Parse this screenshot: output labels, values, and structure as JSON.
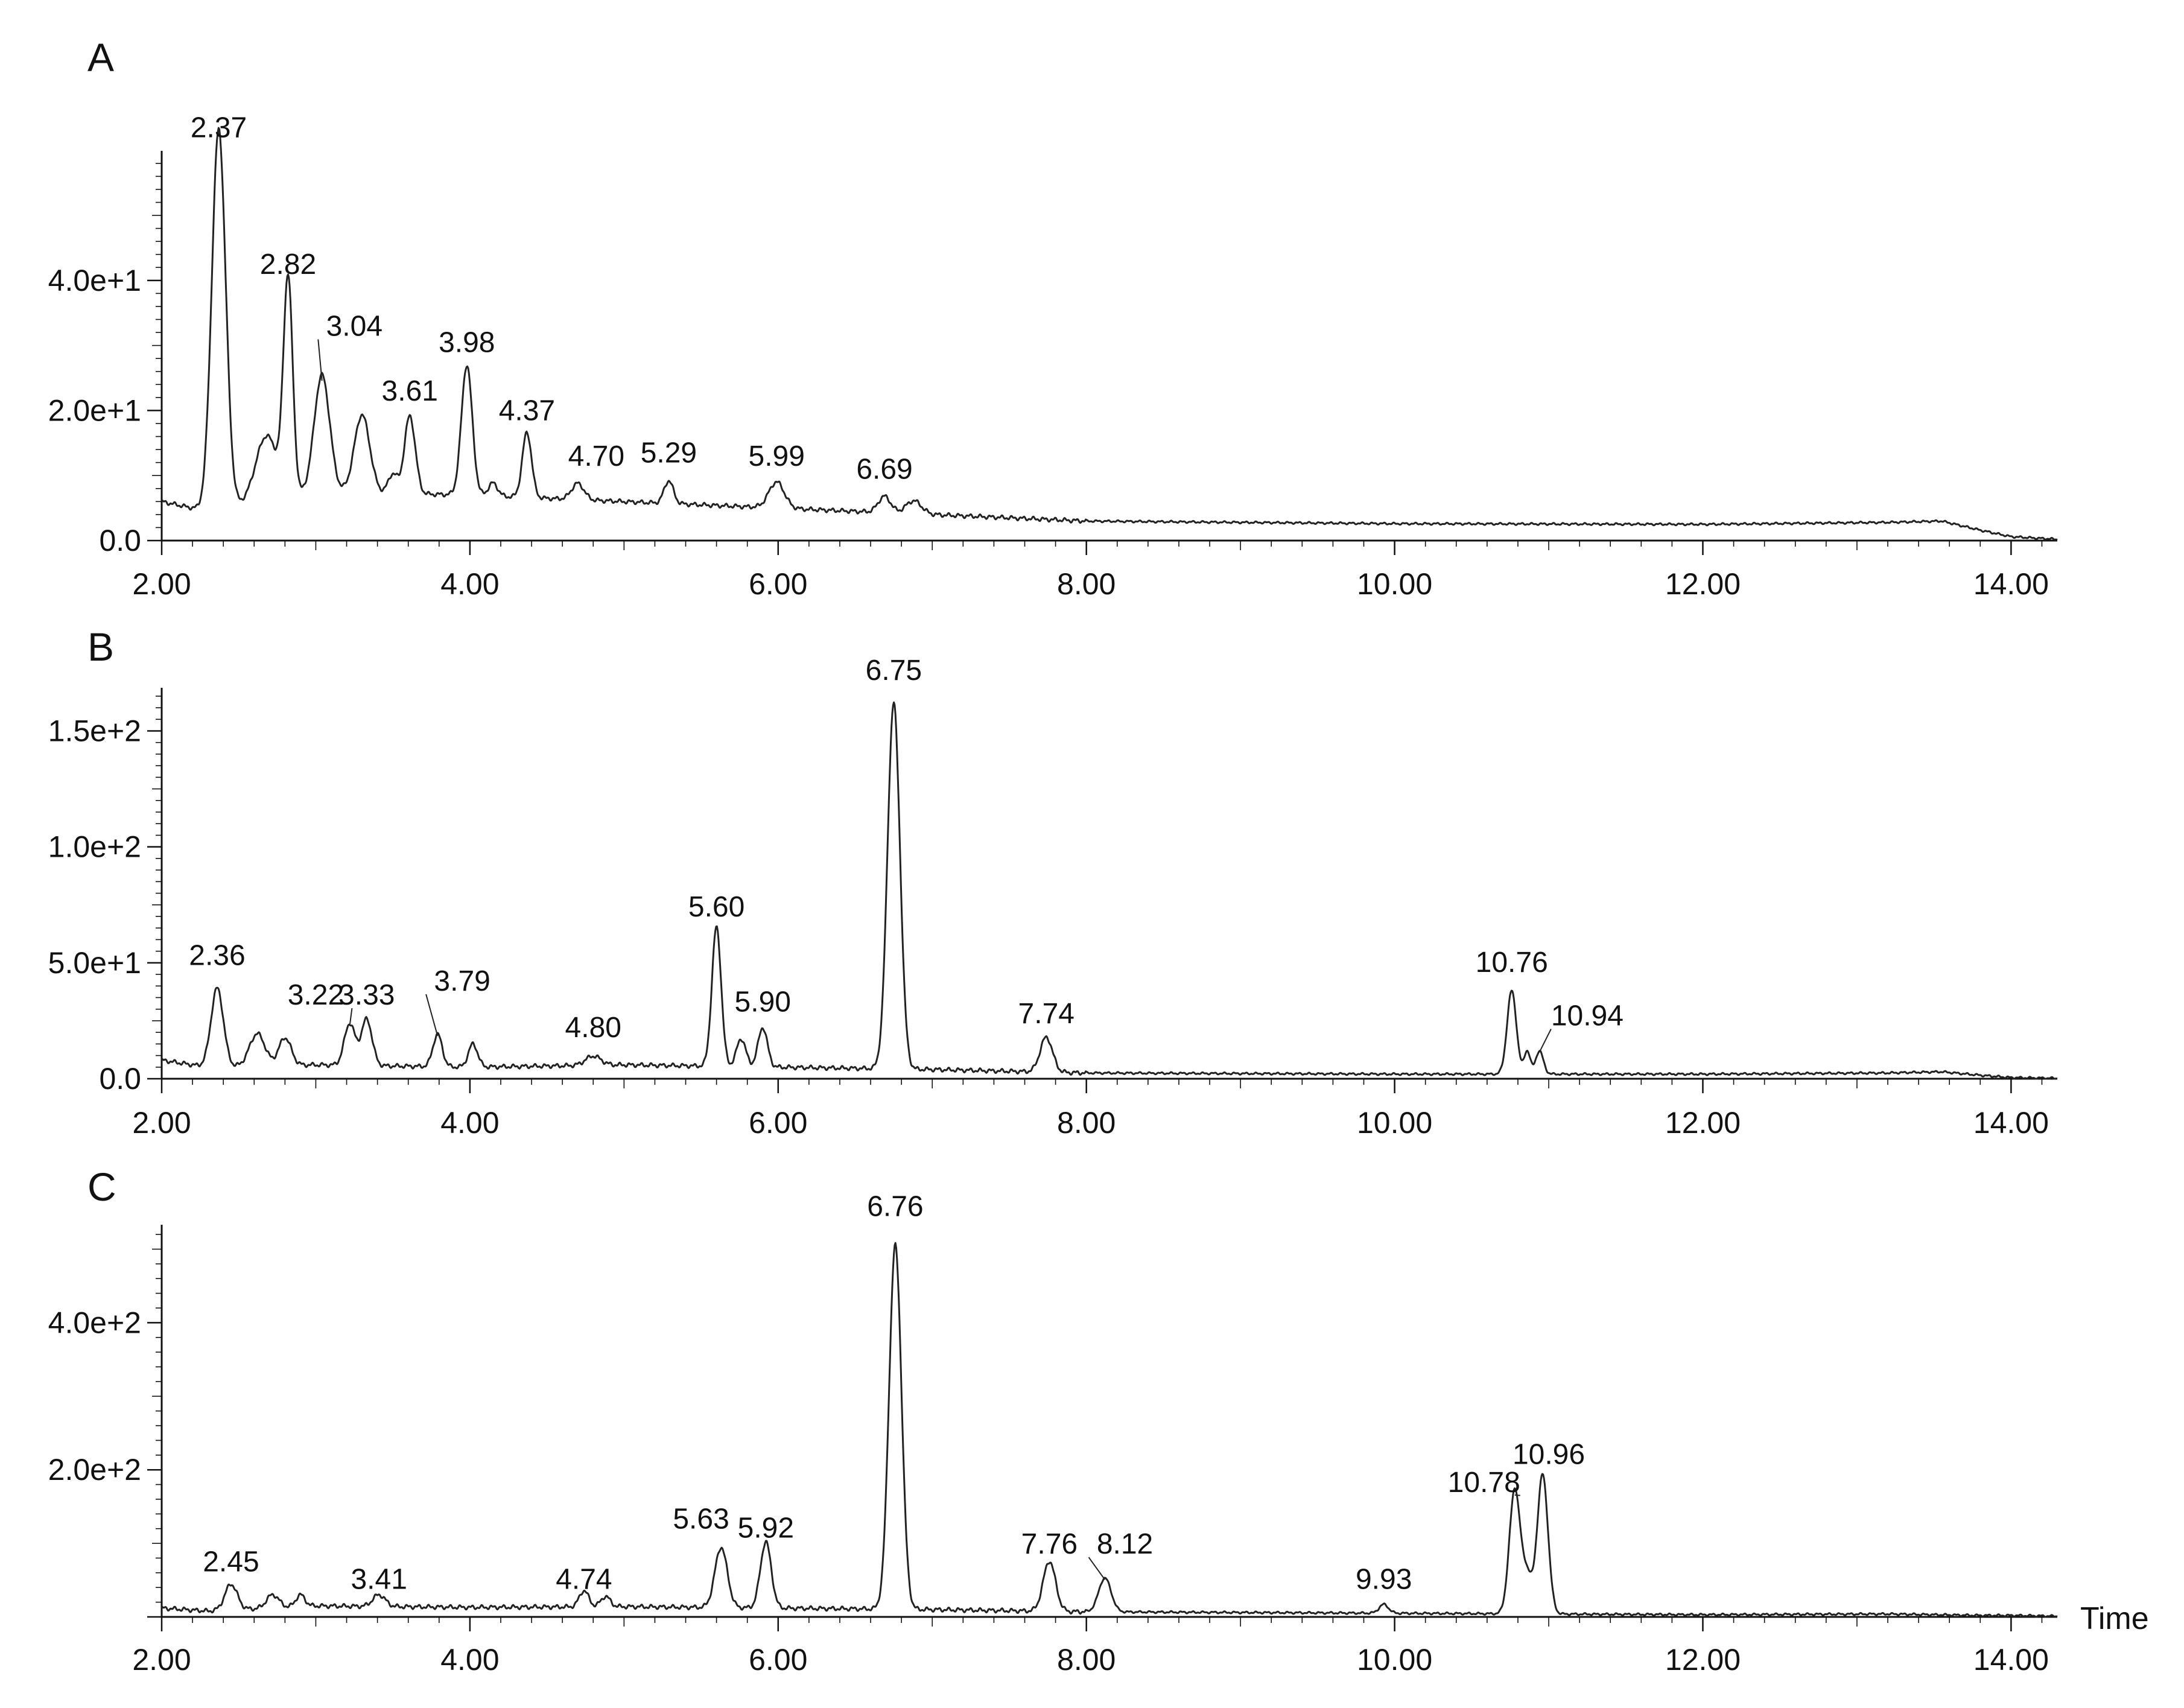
{
  "chart_data": [
    {
      "type": "line",
      "panel_label": "A",
      "x_ticks": [
        "2.00",
        "4.00",
        "6.00",
        "8.00",
        "10.00",
        "12.00",
        "14.00"
      ],
      "y_ticks": [
        {
          "value": 0,
          "label": "0.0"
        },
        {
          "value": 20,
          "label": "2.0e+1"
        },
        {
          "value": 40,
          "label": "4.0e+1"
        }
      ],
      "xlim": [
        2.0,
        14.3
      ],
      "ylim": [
        0,
        59
      ],
      "baseline": [
        [
          2.0,
          6.0
        ],
        [
          2.3,
          4.5
        ],
        [
          3.0,
          7.5
        ],
        [
          4.0,
          7.0
        ],
        [
          5.0,
          6.0
        ],
        [
          6.0,
          5.0
        ],
        [
          7.0,
          4.0
        ],
        [
          8.0,
          3.0
        ],
        [
          10.0,
          2.6
        ],
        [
          12.0,
          2.5
        ],
        [
          13.2,
          2.8
        ],
        [
          13.55,
          3.0
        ],
        [
          13.8,
          1.6
        ],
        [
          14.0,
          0.6
        ],
        [
          14.3,
          0.2
        ]
      ],
      "peaks": [
        {
          "x": 2.37,
          "y": 58.5,
          "w": 0.045,
          "label": "2.37",
          "lx": 2.37,
          "ly": 62
        },
        {
          "x": 2.68,
          "y": 10,
          "w": 0.07
        },
        {
          "x": 2.82,
          "y": 33,
          "w": 0.03,
          "label": "2.82",
          "lx": 2.82,
          "ly": 41
        },
        {
          "x": 3.04,
          "y": 18,
          "w": 0.05,
          "label": "3.04",
          "lx": 3.25,
          "ly": 31.5,
          "leader": true
        },
        {
          "x": 3.3,
          "y": 12,
          "w": 0.05
        },
        {
          "x": 3.5,
          "y": 3,
          "w": 0.03
        },
        {
          "x": 3.61,
          "y": 12,
          "w": 0.035,
          "label": "3.61",
          "lx": 3.61,
          "ly": 21.5
        },
        {
          "x": 3.98,
          "y": 20,
          "w": 0.035,
          "label": "3.98",
          "lx": 3.98,
          "ly": 29
        },
        {
          "x": 4.15,
          "y": 2,
          "w": 0.03
        },
        {
          "x": 4.37,
          "y": 10,
          "w": 0.03,
          "label": "4.37",
          "lx": 4.37,
          "ly": 18.5
        },
        {
          "x": 4.7,
          "y": 2.5,
          "w": 0.04,
          "label": "4.70",
          "lx": 4.82,
          "ly": 11.5
        },
        {
          "x": 5.29,
          "y": 3.5,
          "w": 0.03,
          "label": "5.29",
          "lx": 5.29,
          "ly": 12
        },
        {
          "x": 5.99,
          "y": 4,
          "w": 0.05,
          "label": "5.99",
          "lx": 5.99,
          "ly": 11.5
        },
        {
          "x": 6.69,
          "y": 2.5,
          "w": 0.04,
          "label": "6.69",
          "lx": 6.69,
          "ly": 9.5
        },
        {
          "x": 6.88,
          "y": 2,
          "w": 0.05
        }
      ]
    },
    {
      "type": "line",
      "panel_label": "B",
      "x_ticks": [
        "2.00",
        "4.00",
        "6.00",
        "8.00",
        "10.00",
        "12.00",
        "14.00"
      ],
      "y_ticks": [
        {
          "value": 0,
          "label": "0.0"
        },
        {
          "value": 50,
          "label": "5.0e+1"
        },
        {
          "value": 100,
          "label": "1.0e+2"
        },
        {
          "value": 150,
          "label": "1.5e+2"
        }
      ],
      "xlim": [
        2.0,
        14.3
      ],
      "ylim": [
        0,
        166
      ],
      "baseline": [
        [
          2.0,
          8.0
        ],
        [
          2.3,
          5.0
        ],
        [
          3.0,
          6.0
        ],
        [
          4.0,
          5.0
        ],
        [
          5.0,
          6.0
        ],
        [
          6.0,
          5.0
        ],
        [
          7.0,
          4.0
        ],
        [
          8.0,
          2.5
        ],
        [
          10.0,
          2.0
        ],
        [
          12.0,
          2.0
        ],
        [
          13.2,
          2.5
        ],
        [
          13.55,
          3.0
        ],
        [
          13.8,
          1.5
        ],
        [
          14.0,
          0.5
        ],
        [
          14.3,
          0.2
        ]
      ],
      "peaks": [
        {
          "x": 2.36,
          "y": 34,
          "w": 0.04,
          "label": "2.36",
          "lx": 2.36,
          "ly": 49
        },
        {
          "x": 2.62,
          "y": 14,
          "w": 0.05
        },
        {
          "x": 2.8,
          "y": 12,
          "w": 0.04
        },
        {
          "x": 3.22,
          "y": 18,
          "w": 0.035,
          "label": "3.22",
          "lx": 3.0,
          "ly": 32,
          "leader": true
        },
        {
          "x": 3.33,
          "y": 20,
          "w": 0.035,
          "label": "3.33",
          "lx": 3.33,
          "ly": 32
        },
        {
          "x": 3.79,
          "y": 14,
          "w": 0.03,
          "label": "3.79",
          "lx": 3.95,
          "ly": 38,
          "leader": true
        },
        {
          "x": 4.02,
          "y": 10,
          "w": 0.03
        },
        {
          "x": 4.8,
          "y": 4,
          "w": 0.05,
          "label": "4.80",
          "lx": 4.8,
          "ly": 18
        },
        {
          "x": 5.6,
          "y": 60,
          "w": 0.03,
          "label": "5.60",
          "lx": 5.6,
          "ly": 70
        },
        {
          "x": 5.76,
          "y": 12,
          "w": 0.03
        },
        {
          "x": 5.9,
          "y": 17,
          "w": 0.03,
          "label": "5.90",
          "lx": 5.9,
          "ly": 29
        },
        {
          "x": 6.75,
          "y": 158,
          "w": 0.04,
          "label": "6.75",
          "lx": 6.75,
          "ly": 172
        },
        {
          "x": 7.74,
          "y": 15,
          "w": 0.04,
          "label": "7.74",
          "lx": 7.74,
          "ly": 24
        },
        {
          "x": 10.76,
          "y": 36,
          "w": 0.03,
          "label": "10.76",
          "lx": 10.76,
          "ly": 46
        },
        {
          "x": 10.86,
          "y": 10,
          "w": 0.02
        },
        {
          "x": 10.94,
          "y": 10,
          "w": 0.025,
          "label": "10.94",
          "lx": 11.25,
          "ly": 23,
          "leader": true
        }
      ]
    },
    {
      "type": "line",
      "panel_label": "C",
      "x_ticks": [
        "2.00",
        "4.00",
        "6.00",
        "8.00",
        "10.00",
        "12.00",
        "14.00"
      ],
      "y_ticks": [
        {
          "value": 200,
          "label": "2.0e+2"
        },
        {
          "value": 400,
          "label": "4.0e+2"
        }
      ],
      "xlim": [
        2.0,
        14.3
      ],
      "ylim": [
        0,
        525
      ],
      "xlabel": "Time",
      "baseline": [
        [
          2.0,
          12
        ],
        [
          2.3,
          8
        ],
        [
          3.0,
          15
        ],
        [
          4.0,
          13
        ],
        [
          5.0,
          14
        ],
        [
          6.0,
          12
        ],
        [
          7.0,
          10
        ],
        [
          8.0,
          7
        ],
        [
          10.0,
          5
        ],
        [
          12.0,
          3
        ],
        [
          13.2,
          4
        ],
        [
          13.5,
          3
        ],
        [
          13.8,
          2
        ],
        [
          14.0,
          2
        ],
        [
          14.3,
          1
        ]
      ],
      "peaks": [
        {
          "x": 2.45,
          "y": 35,
          "w": 0.04,
          "label": "2.45",
          "lx": 2.45,
          "ly": 62
        },
        {
          "x": 2.72,
          "y": 18,
          "w": 0.04
        },
        {
          "x": 2.9,
          "y": 16,
          "w": 0.03
        },
        {
          "x": 3.41,
          "y": 16,
          "w": 0.04,
          "label": "3.41",
          "lx": 3.41,
          "ly": 38
        },
        {
          "x": 4.74,
          "y": 22,
          "w": 0.03,
          "label": "4.74",
          "lx": 4.74,
          "ly": 38
        },
        {
          "x": 4.88,
          "y": 14,
          "w": 0.03
        },
        {
          "x": 5.63,
          "y": 82,
          "w": 0.04,
          "label": "5.63",
          "lx": 5.5,
          "ly": 120
        },
        {
          "x": 5.92,
          "y": 90,
          "w": 0.035,
          "label": "5.92",
          "lx": 5.92,
          "ly": 108
        },
        {
          "x": 6.76,
          "y": 495,
          "w": 0.04,
          "label": "6.76",
          "lx": 6.76,
          "ly": 545
        },
        {
          "x": 7.76,
          "y": 68,
          "w": 0.04,
          "label": "7.76",
          "lx": 7.76,
          "ly": 86
        },
        {
          "x": 8.12,
          "y": 46,
          "w": 0.04,
          "label": "8.12",
          "lx": 8.25,
          "ly": 86,
          "leader": true
        },
        {
          "x": 9.93,
          "y": 12,
          "w": 0.03,
          "label": "9.93",
          "lx": 9.93,
          "ly": 38
        },
        {
          "x": 10.78,
          "y": 170,
          "w": 0.035,
          "label": "10.78",
          "lx": 10.58,
          "ly": 170,
          "leader": true
        },
        {
          "x": 10.86,
          "y": 50,
          "w": 0.03
        },
        {
          "x": 10.96,
          "y": 190,
          "w": 0.035,
          "label": "10.96",
          "lx": 11.0,
          "ly": 208
        }
      ]
    }
  ]
}
